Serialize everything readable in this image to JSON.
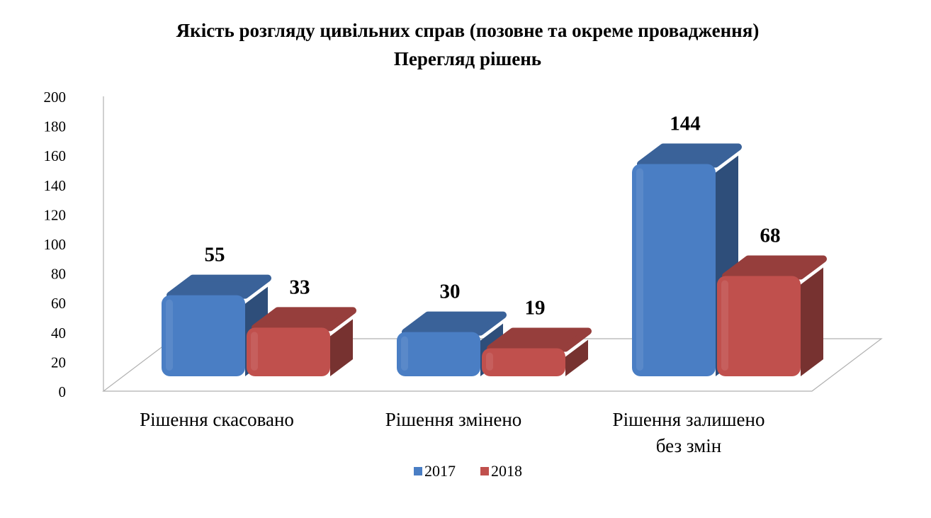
{
  "chart_data": {
    "type": "bar",
    "title": "Якість розгляду цивільних справ (позовне та окреме провадження)",
    "subtitle": "Перегляд рішень",
    "categories": [
      [
        "Рішення скасовано"
      ],
      [
        "Рішення змінено"
      ],
      [
        "Рішення залишено",
        "без змін"
      ]
    ],
    "series": [
      {
        "name": "2017",
        "values": [
          55,
          30,
          144
        ],
        "color": "#4a7ec4"
      },
      {
        "name": "2018",
        "values": [
          33,
          19,
          68
        ],
        "color": "#c0504d"
      }
    ],
    "ylim": [
      0,
      200
    ],
    "yticks": [
      0,
      20,
      40,
      60,
      80,
      100,
      120,
      140,
      160,
      180,
      200
    ],
    "style": "3d-column",
    "legend_position": "bottom",
    "data_labels": true,
    "grid": false
  }
}
